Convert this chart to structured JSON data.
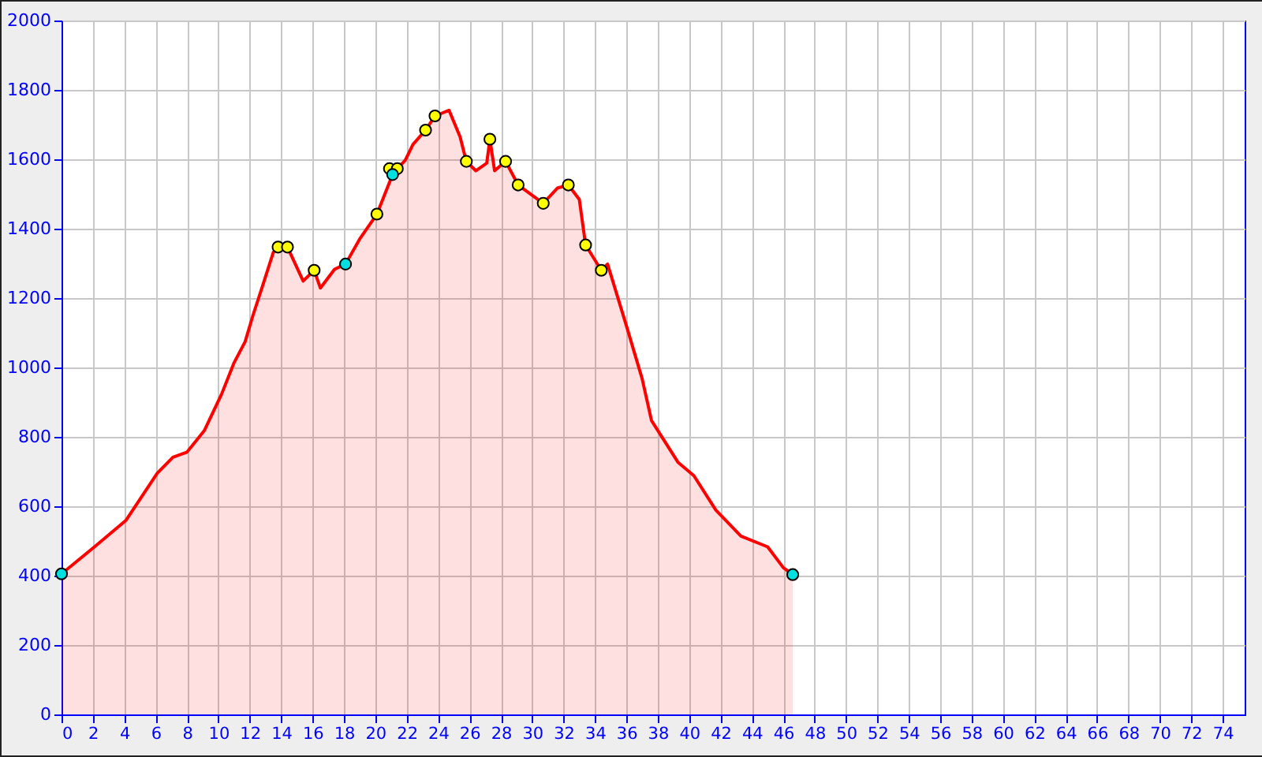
{
  "chart_data": {
    "type": "area",
    "xlim": [
      0,
      75.4
    ],
    "ylim": [
      0,
      2000
    ],
    "xticks": [
      0,
      2,
      4,
      6,
      8,
      10,
      12,
      14,
      16,
      18,
      20,
      22,
      24,
      26,
      28,
      30,
      32,
      34,
      36,
      38,
      40,
      42,
      44,
      46,
      48,
      50,
      52,
      54,
      56,
      58,
      60,
      62,
      64,
      66,
      68,
      70,
      72,
      74
    ],
    "yticks": [
      0,
      200,
      400,
      600,
      800,
      1000,
      1200,
      1400,
      1600,
      1800,
      2000
    ],
    "grid": true,
    "series": [
      {
        "type": "area",
        "color": "#ff0000",
        "x": [
          0,
          2.1,
          4.1,
          6.1,
          7.1,
          8.0,
          9.1,
          10.2,
          11.0,
          11.7,
          12.2,
          12.8,
          13.5,
          13.8,
          14.4,
          15.4,
          16.1,
          16.5,
          17.4,
          18.1,
          19.0,
          20.1,
          21.1,
          21.4,
          21.9,
          22.4,
          23.2,
          23.8,
          24.7,
          25.4,
          25.8,
          26.4,
          27.1,
          27.3,
          27.6,
          28.3,
          29.1,
          30.7,
          31.6,
          32.3,
          33.0,
          33.4,
          34.4,
          34.8,
          36.0,
          37.0,
          37.6,
          39.3,
          40.3,
          41.7,
          43.3,
          45.0,
          46.0,
          46.6
        ],
        "values": [
          405,
          483,
          559,
          695,
          741,
          756,
          818,
          923,
          1014,
          1074,
          1150,
          1233,
          1332,
          1347,
          1347,
          1249,
          1280,
          1229,
          1283,
          1298,
          1370,
          1442,
          1556,
          1573,
          1597,
          1643,
          1684,
          1725,
          1741,
          1665,
          1594,
          1567,
          1589,
          1658,
          1567,
          1594,
          1526,
          1473,
          1517,
          1526,
          1484,
          1353,
          1280,
          1298,
          1120,
          968,
          847,
          726,
          688,
          589,
          514,
          483,
          423,
          403
        ]
      },
      {
        "type": "scatter",
        "marker": "circle",
        "color": "#ffff00",
        "x": [
          13.8,
          14.4,
          16.1,
          20.1,
          20.9,
          21.4,
          23.2,
          23.8,
          25.8,
          27.3,
          28.3,
          29.1,
          30.7,
          32.3,
          33.4,
          34.4
        ],
        "values": [
          1347,
          1347,
          1280,
          1442,
          1573,
          1573,
          1684,
          1725,
          1594,
          1658,
          1594,
          1526,
          1473,
          1526,
          1353,
          1280
        ]
      },
      {
        "type": "scatter",
        "marker": "circle",
        "color": "#00e0e0",
        "x": [
          0,
          18.1,
          21.1,
          46.6
        ],
        "values": [
          405,
          1298,
          1556,
          403
        ]
      }
    ]
  }
}
